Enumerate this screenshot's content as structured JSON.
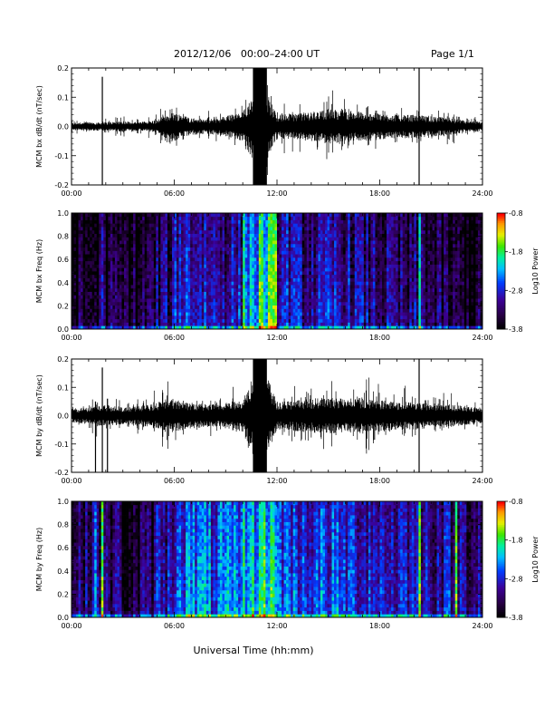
{
  "header": {
    "title": "2012/12/06   00:00–24:00 UT",
    "page": "Page 1/1"
  },
  "footer": {
    "xlabel": "Universal Time (hh:mm)"
  },
  "chart_data": [
    {
      "type": "line",
      "ylabel": "MCM bx dB/dt (nT/sec)",
      "xlim": [
        0,
        24
      ],
      "ylim": [
        -0.2,
        0.2
      ],
      "x_ticks": [
        "00:00",
        "06:00",
        "12:00",
        "18:00",
        "24:00"
      ],
      "y_ticks": [
        "-0.2",
        "-0.1",
        "0.0",
        "0.1",
        "0.2"
      ],
      "y_tick_values": [
        -0.2,
        -0.1,
        0.0,
        0.1,
        0.2
      ],
      "noise_envelope": [
        [
          0,
          0.012
        ],
        [
          1,
          0.015
        ],
        [
          2,
          0.014
        ],
        [
          3,
          0.018
        ],
        [
          4,
          0.016
        ],
        [
          5,
          0.022
        ],
        [
          5.5,
          0.04
        ],
        [
          6,
          0.05
        ],
        [
          7,
          0.03
        ],
        [
          8,
          0.025
        ],
        [
          9,
          0.035
        ],
        [
          10,
          0.05
        ],
        [
          10.6,
          0.12
        ],
        [
          11.4,
          0.12
        ],
        [
          12,
          0.04
        ],
        [
          13,
          0.045
        ],
        [
          14,
          0.05
        ],
        [
          15,
          0.06
        ],
        [
          16,
          0.055
        ],
        [
          17,
          0.05
        ],
        [
          18,
          0.045
        ],
        [
          19,
          0.04
        ],
        [
          20,
          0.04
        ],
        [
          21,
          0.035
        ],
        [
          22,
          0.03
        ],
        [
          23,
          0.02
        ],
        [
          24,
          0.015
        ]
      ],
      "burst": {
        "start": 10.6,
        "end": 11.4,
        "max": 0.21,
        "min": -0.21
      },
      "spikes": [
        {
          "x": 1.8,
          "max": 0.17,
          "min": -0.2
        },
        {
          "x": 20.3,
          "max": 0.2,
          "min": -0.2
        }
      ]
    },
    {
      "type": "heatmap",
      "ylabel": "MCM bx Freq (Hz)",
      "xlim": [
        0,
        24
      ],
      "ylim": [
        0,
        1
      ],
      "x_ticks": [
        "00:00",
        "06:00",
        "12:00",
        "18:00",
        "24:00"
      ],
      "y_ticks": [
        "0.0",
        "0.2",
        "0.4",
        "0.6",
        "0.8",
        "1.0"
      ],
      "y_tick_values": [
        0,
        0.2,
        0.4,
        0.6,
        0.8,
        1.0
      ],
      "colorbar": {
        "label": "Log10 Power",
        "ticks": [
          "-0.8",
          "-1.8",
          "-2.8",
          "-3.8"
        ],
        "tick_values": [
          -0.8,
          -1.8,
          -2.8,
          -3.8
        ],
        "range": [
          -3.8,
          -0.8
        ]
      },
      "mean_log_power_by_hour": [
        -3.6,
        -3.5,
        -3.5,
        -3.5,
        -3.4,
        -3.2,
        -2.7,
        -2.8,
        -2.9,
        -2.9,
        -2.2,
        -1.9,
        -2.8,
        -3.0,
        -3.0,
        -2.9,
        -3.0,
        -3.1,
        -3.2,
        -3.3,
        -3.2,
        -3.4,
        -3.5,
        -3.6
      ],
      "bright_lines": [
        1.8,
        20.3
      ]
    },
    {
      "type": "line",
      "ylabel": "MCM by dB/dt (nT/sec)",
      "xlim": [
        0,
        24
      ],
      "ylim": [
        -0.2,
        0.2
      ],
      "x_ticks": [
        "00:00",
        "06:00",
        "12:00",
        "18:00",
        "24:00"
      ],
      "y_ticks": [
        "-0.2",
        "-0.1",
        "0.0",
        "0.1",
        "0.2"
      ],
      "y_tick_values": [
        -0.2,
        -0.1,
        0.0,
        0.1,
        0.2
      ],
      "noise_envelope": [
        [
          0,
          0.025
        ],
        [
          1,
          0.03
        ],
        [
          2,
          0.04
        ],
        [
          3,
          0.03
        ],
        [
          4,
          0.035
        ],
        [
          5,
          0.045
        ],
        [
          5.5,
          0.06
        ],
        [
          6,
          0.06
        ],
        [
          7,
          0.045
        ],
        [
          8,
          0.04
        ],
        [
          9,
          0.045
        ],
        [
          10,
          0.06
        ],
        [
          10.6,
          0.14
        ],
        [
          11.4,
          0.14
        ],
        [
          12,
          0.05
        ],
        [
          13,
          0.055
        ],
        [
          14,
          0.06
        ],
        [
          15,
          0.065
        ],
        [
          16,
          0.06
        ],
        [
          17,
          0.065
        ],
        [
          18,
          0.055
        ],
        [
          19,
          0.05
        ],
        [
          20,
          0.05
        ],
        [
          21,
          0.045
        ],
        [
          22,
          0.04
        ],
        [
          23,
          0.035
        ],
        [
          24,
          0.03
        ]
      ],
      "burst": {
        "start": 10.6,
        "end": 11.4,
        "max": 0.21,
        "min": -0.21
      },
      "spikes": [
        {
          "x": 1.4,
          "max": 0.05,
          "min": -0.2
        },
        {
          "x": 1.8,
          "max": 0.17,
          "min": -0.2
        },
        {
          "x": 2.1,
          "max": 0.06,
          "min": -0.2
        },
        {
          "x": 20.3,
          "max": 0.2,
          "min": -0.2
        }
      ]
    },
    {
      "type": "heatmap",
      "ylabel": "MCM by Freq (Hz)",
      "xlim": [
        0,
        24
      ],
      "ylim": [
        0,
        1
      ],
      "x_ticks": [
        "00:00",
        "06:00",
        "12:00",
        "18:00",
        "24:00"
      ],
      "y_ticks": [
        "0.0",
        "0.2",
        "0.4",
        "0.6",
        "0.8",
        "1.0"
      ],
      "y_tick_values": [
        0,
        0.2,
        0.4,
        0.6,
        0.8,
        1.0
      ],
      "colorbar": {
        "label": "Log10 Power",
        "ticks": [
          "-0.8",
          "-1.8",
          "-2.8",
          "-3.8"
        ],
        "tick_values": [
          -0.8,
          -1.8,
          -2.8,
          -3.8
        ],
        "range": [
          -3.8,
          -0.8
        ]
      },
      "mean_log_power_by_hour": [
        -3.2,
        -3.0,
        -3.2,
        -3.5,
        -3.3,
        -2.9,
        -2.4,
        -2.4,
        -2.5,
        -2.5,
        -2.1,
        -1.9,
        -2.5,
        -2.6,
        -2.6,
        -2.6,
        -2.7,
        -2.7,
        -2.8,
        -2.8,
        -2.8,
        -2.9,
        -2.9,
        -3.0
      ],
      "bright_lines": [
        1.4,
        1.8,
        20.3,
        22.5
      ]
    }
  ]
}
